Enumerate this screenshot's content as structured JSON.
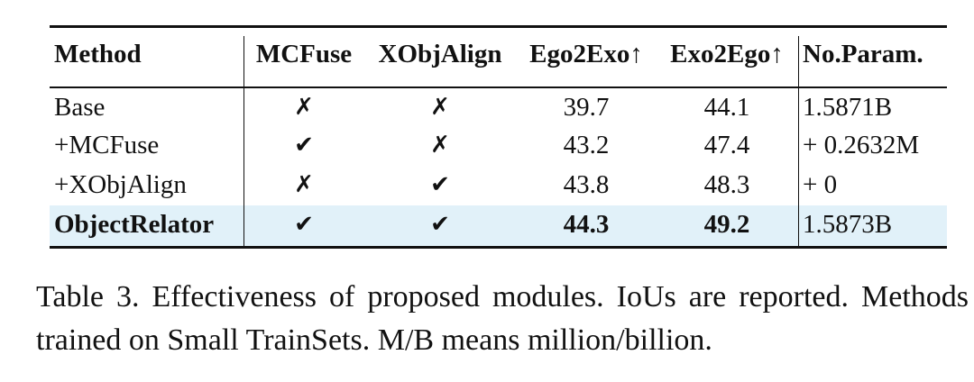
{
  "table": {
    "header": [
      "Method",
      "MCFuse",
      "XObjAlign",
      "Ego2Exo↑",
      "Exo2Ego↑",
      "No.Param."
    ],
    "rows": [
      [
        "Base",
        "✗",
        "✗",
        39.7,
        44.1,
        "1.5871B"
      ],
      [
        "+MCFuse",
        "✔",
        "✗",
        43.2,
        47.4,
        "+ 0.2632M"
      ],
      [
        "+XObjAlign",
        "✗",
        "✔",
        43.8,
        48.3,
        "+ 0"
      ],
      [
        "ObjectRelator",
        "✔",
        "✔",
        44.3,
        49.2,
        "1.5873B"
      ]
    ]
  },
  "caption": "Table 3.  Effectiveness of proposed modules.  IoUs are reported. Methods trained on Small TrainSets. M/B means million/billion."
}
